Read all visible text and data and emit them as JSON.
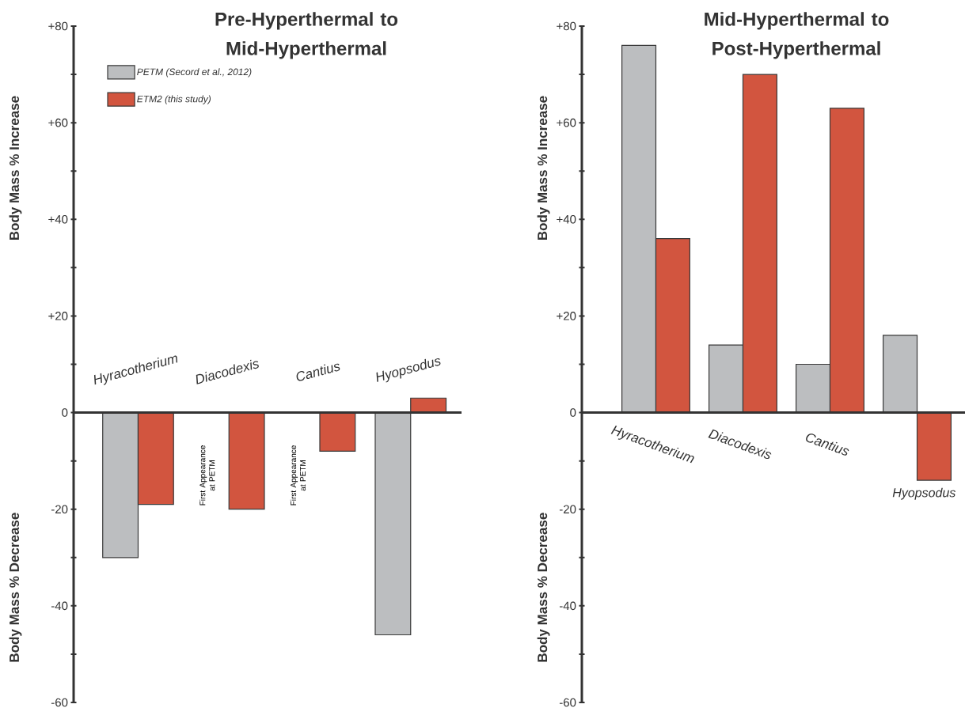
{
  "chart_data": [
    {
      "type": "bar",
      "title": "Pre-Hyperthermal to Mid-Hyperthermal",
      "ylabel": "Body Mass % Increase",
      "categories": [
        "Hyracotherium",
        "Diacodexis",
        "Cantius",
        "Hyopsodus"
      ],
      "series": [
        {
          "name": "PETM (Secord et al., 2012)",
          "color": "#bcbec0",
          "values": [
            -30,
            null,
            null,
            -46
          ]
        },
        {
          "name": "ETM2 (this study)",
          "color": "#d2553f",
          "values": [
            -19,
            -20,
            -8,
            3
          ]
        }
      ],
      "ylim": [
        -60,
        80
      ],
      "yticks": [
        {
          "value": 80,
          "label": "+80"
        },
        {
          "value": 70,
          "label": null
        },
        {
          "value": 60,
          "label": "+60"
        },
        {
          "value": 50,
          "label": null
        },
        {
          "value": 40,
          "label": "+40"
        },
        {
          "value": 30,
          "label": null
        },
        {
          "value": 20,
          "label": "+20"
        },
        {
          "value": 10,
          "label": null
        },
        0,
        {
          "value": -10,
          "label": null
        },
        -20,
        {
          "value": -30,
          "label": null
        },
        -40,
        {
          "value": -50,
          "label": null
        },
        -60
      ],
      "legend": "top left",
      "annotations": [
        "Body Mass % Decrease",
        "First Appearance at PETM",
        "First Appearance at PETM"
      ]
    },
    {
      "type": "bar",
      "title": "Mid-Hyperthermal to Post-Hyperthermal",
      "ylabel": "Body Mass % Increase",
      "categories": [
        "Hyracotherium",
        "Diacodexis",
        "Cantius",
        "Hyopsodus"
      ],
      "series": [
        {
          "color": "#bcbec0",
          "values": [
            76,
            14,
            10,
            16
          ]
        },
        {
          "color": "#d2553f",
          "values": [
            36,
            70,
            63,
            -14
          ]
        }
      ],
      "ylim": [
        -60,
        80
      ],
      "yticks": [
        {
          "value": 80,
          "label": "+80"
        },
        {
          "value": 70,
          "label": null
        },
        {
          "value": 60,
          "label": "+60"
        },
        {
          "value": 50,
          "label": null
        },
        {
          "value": 40,
          "label": "+40"
        },
        {
          "value": 30,
          "label": null
        },
        {
          "value": 20,
          "label": "+20"
        },
        {
          "value": 10,
          "label": null
        },
        0,
        {
          "value": -10,
          "label": null
        },
        -20,
        {
          "value": -30,
          "label": null
        },
        -40,
        {
          "value": -50,
          "label": null
        },
        -60
      ],
      "annotations": [
        "Body Mass % Decrease"
      ]
    }
  ]
}
